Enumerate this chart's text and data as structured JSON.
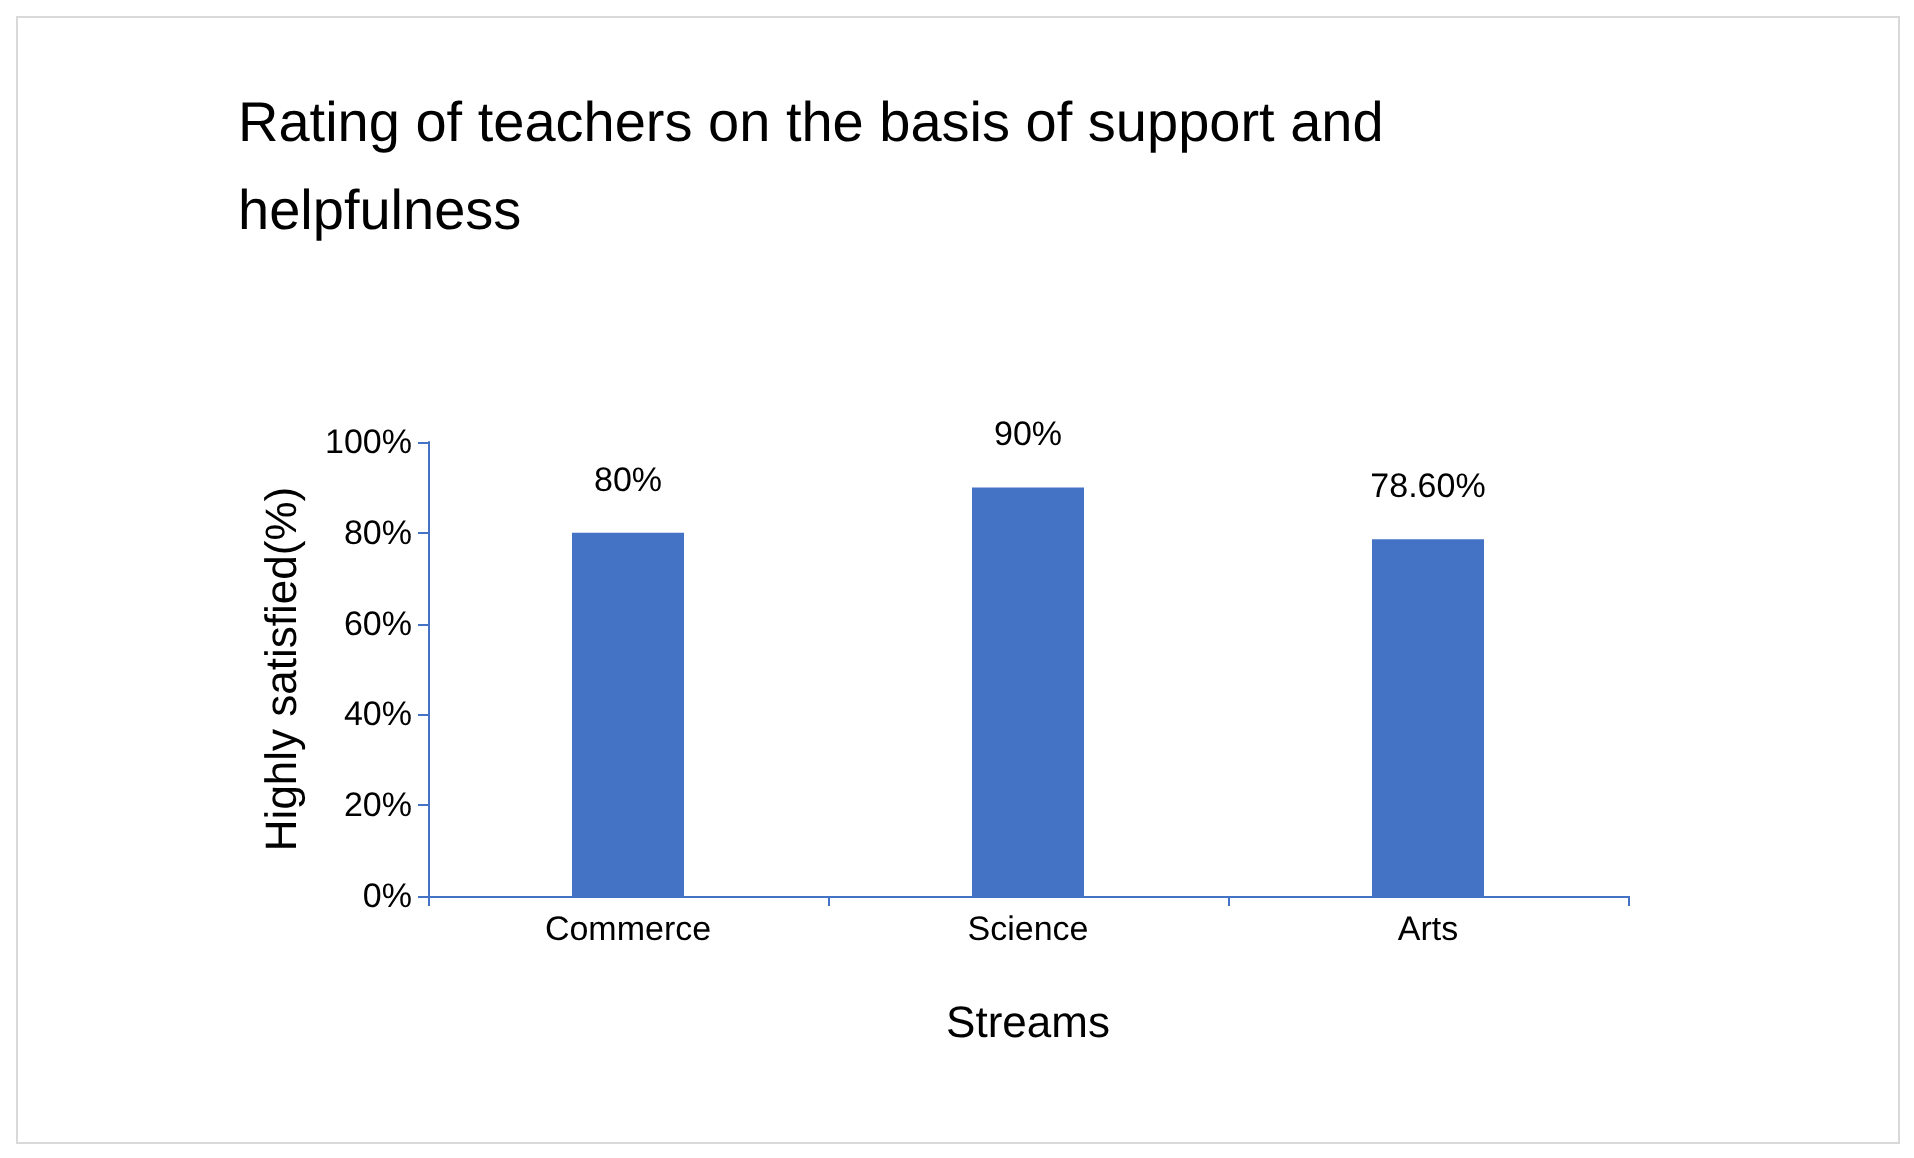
{
  "chart_data": {
    "type": "bar",
    "title": "Rating of teachers on the basis of support and helpfulness",
    "xlabel": "Streams",
    "ylabel": "Highly satisfied(%)",
    "categories": [
      "Commerce",
      "Science",
      "Arts"
    ],
    "values": [
      80,
      90,
      78.6
    ],
    "value_labels": [
      "80%",
      "90%",
      "78.60%"
    ],
    "color": "#4472c4",
    "ylim": [
      0,
      100
    ],
    "yticks": [
      {
        "value": 0,
        "label": "0%"
      },
      {
        "value": 20,
        "label": "20%"
      },
      {
        "value": 40,
        "label": "40%"
      },
      {
        "value": 60,
        "label": "60%"
      },
      {
        "value": 80,
        "label": "80%"
      },
      {
        "value": 100,
        "label": "100%"
      }
    ],
    "grid": false
  }
}
